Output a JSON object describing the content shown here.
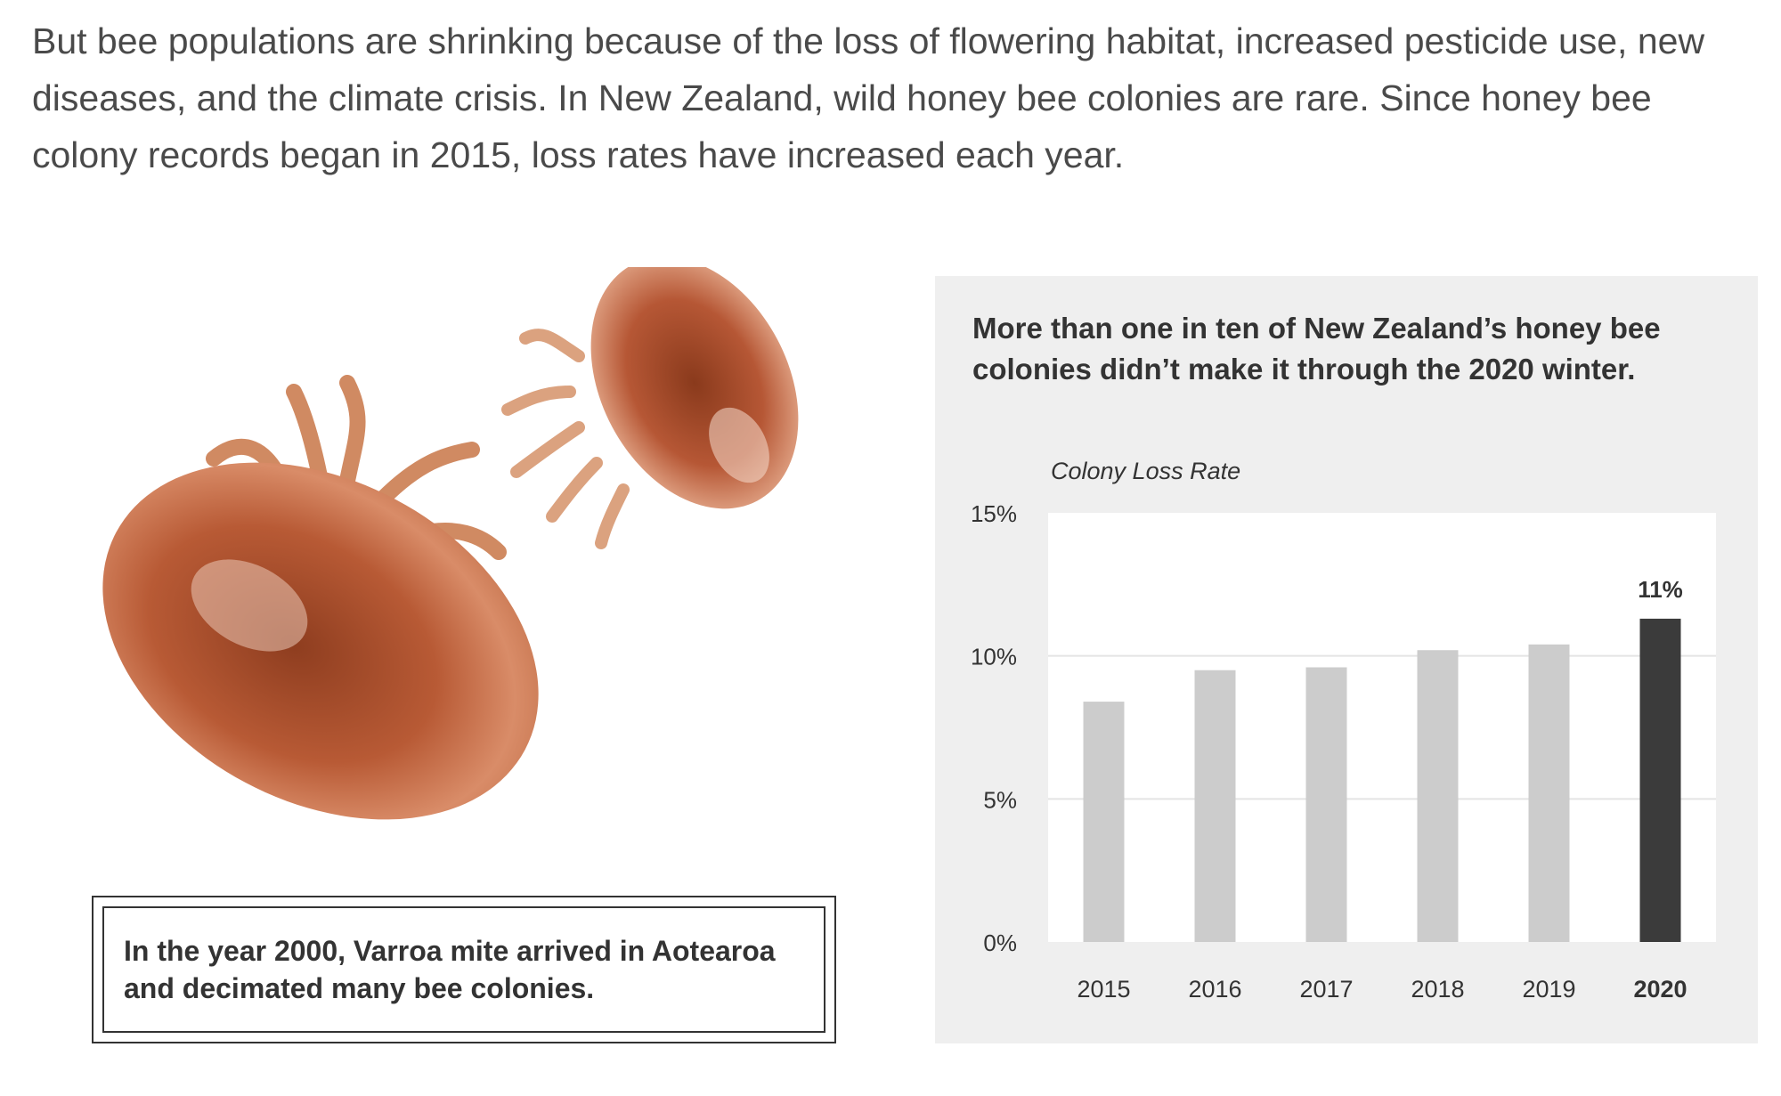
{
  "intro_text": "But bee populations are shrinking because of the loss of flowering habitat, increased pesticide use, new diseases, and the climate crisis. In New Zealand, wild honey bee colonies are rare. Since honey bee colony records began in 2015, loss rates have increased each year.",
  "callout_text": "In the year 2000, Varroa mite arrived in Aotearoa and decimated many bee colonies.",
  "colors": {
    "intro_text": "#4a4a4a",
    "panel_bg": "#efefef",
    "plot_bg": "#ffffff",
    "bar_default": "#cccccc",
    "bar_highlight": "#3b3b3b",
    "mite_body": "#b85a35"
  },
  "chart_data": {
    "type": "bar",
    "title": "More than one in ten of New Zealand’s honey bee colonies didn’t make it through the 2020 winter.",
    "ylabel": "Colony Loss Rate",
    "xlabel": "",
    "categories": [
      "2015",
      "2016",
      "2017",
      "2018",
      "2019",
      "2020"
    ],
    "values": [
      8.4,
      9.5,
      9.6,
      10.2,
      10.4,
      11.3
    ],
    "highlight_index": 5,
    "highlight_label": "11%",
    "yticks": [
      {
        "value": 0,
        "label": "0%"
      },
      {
        "value": 5,
        "label": "5%"
      },
      {
        "value": 10,
        "label": "10%"
      },
      {
        "value": 15,
        "label": "15%"
      }
    ],
    "ylim": [
      0,
      15
    ],
    "grid": true,
    "legend": "none"
  }
}
